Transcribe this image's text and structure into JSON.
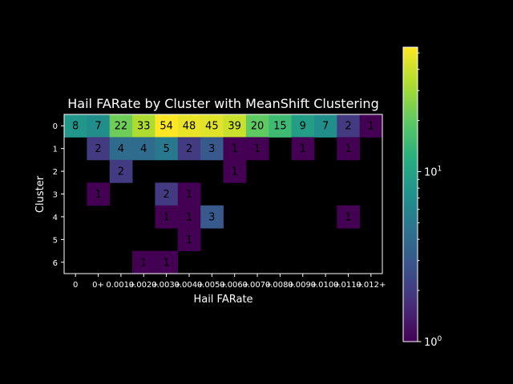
{
  "chart_data": {
    "type": "heatmap",
    "title": "Hail FARate by Cluster with MeanShift Clustering",
    "xlabel": "Hail FARate",
    "ylabel": "Cluster",
    "x_tick_labels": [
      "0",
      "0+",
      "0.001+",
      "0.002+",
      "0.003+",
      "0.004+",
      "0.005+",
      "0.006+",
      "0.007+",
      "0.008+",
      "0.009+",
      "0.010+",
      "0.011+",
      "0.012+"
    ],
    "y_tick_labels": [
      "0",
      "1",
      "2",
      "3",
      "4",
      "5",
      "6"
    ],
    "values": [
      [
        8,
        7,
        22,
        33,
        54,
        48,
        45,
        39,
        20,
        15,
        9,
        7,
        2,
        1
      ],
      [
        null,
        2,
        4,
        4,
        5,
        2,
        3,
        1,
        1,
        null,
        1,
        null,
        1,
        null
      ],
      [
        null,
        null,
        2,
        null,
        null,
        null,
        null,
        1,
        null,
        null,
        null,
        null,
        null,
        null
      ],
      [
        null,
        1,
        null,
        null,
        2,
        1,
        null,
        null,
        null,
        null,
        null,
        null,
        null,
        null
      ],
      [
        null,
        null,
        null,
        null,
        1,
        1,
        3,
        null,
        null,
        null,
        null,
        null,
        1,
        null
      ],
      [
        null,
        null,
        null,
        null,
        null,
        1,
        null,
        null,
        null,
        null,
        null,
        null,
        null,
        null
      ],
      [
        null,
        null,
        null,
        1,
        1,
        null,
        null,
        null,
        null,
        null,
        null,
        null,
        null,
        null
      ]
    ],
    "colorbar": {
      "scale": "log",
      "min": 1,
      "max": 54,
      "colormap": "viridis",
      "tick_labels": [
        "10^0",
        "10^1"
      ]
    },
    "grid": false,
    "colors": {
      "background": "#000000",
      "text": "#ffffff",
      "empty_cell": "#000000"
    }
  }
}
